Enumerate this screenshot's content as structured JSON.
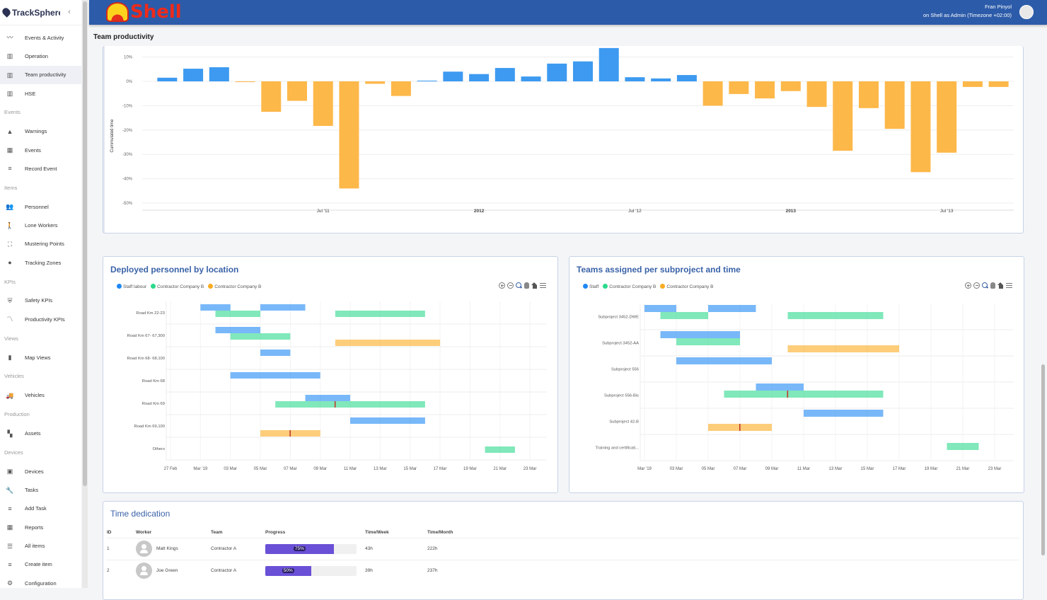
{
  "app": {
    "name": "TrackSphere",
    "brand": "Shell"
  },
  "user": {
    "name": "Fran Pinyol",
    "context": "on Shell as Admin (Timezone +02:00)"
  },
  "sidebar": [
    {
      "type": "item",
      "label": "Events & Activity",
      "icon": "activity-icon",
      "glyph": "〰"
    },
    {
      "type": "item",
      "label": "Operation",
      "icon": "bar-chart-icon",
      "glyph": "▥"
    },
    {
      "type": "item",
      "label": "Team productivity",
      "icon": "bar-chart-icon",
      "glyph": "▥",
      "active": true
    },
    {
      "type": "item",
      "label": "HSE",
      "icon": "bar-chart-icon",
      "glyph": "▥"
    },
    {
      "type": "section",
      "label": "Events"
    },
    {
      "type": "item",
      "label": "Warnings",
      "icon": "warning-icon",
      "glyph": "▲"
    },
    {
      "type": "item",
      "label": "Events",
      "icon": "calendar-icon",
      "glyph": "▦"
    },
    {
      "type": "item",
      "label": "Record Event",
      "icon": "add-list-icon",
      "glyph": "≡"
    },
    {
      "type": "section",
      "label": "Items"
    },
    {
      "type": "item",
      "label": "Personnel",
      "icon": "people-icon",
      "glyph": "👥"
    },
    {
      "type": "item",
      "label": "Lone Workers",
      "icon": "walker-icon",
      "glyph": "🚶"
    },
    {
      "type": "item",
      "label": "Mustering Points",
      "icon": "mustering-icon",
      "glyph": "⛶"
    },
    {
      "type": "item",
      "label": "Tracking Zones",
      "icon": "location-pin-icon",
      "glyph": "●"
    },
    {
      "type": "section",
      "label": "KPIs"
    },
    {
      "type": "item",
      "label": "Safety KPIs",
      "icon": "shield-icon",
      "glyph": "⛨"
    },
    {
      "type": "item",
      "label": "Productivity KPIs",
      "icon": "trend-icon",
      "glyph": "〽"
    },
    {
      "type": "section",
      "label": "Views"
    },
    {
      "type": "item",
      "label": "Map Views",
      "icon": "map-icon",
      "glyph": "▮"
    },
    {
      "type": "section",
      "label": "Vehicles"
    },
    {
      "type": "item",
      "label": "Vehicles",
      "icon": "truck-icon",
      "glyph": "🚚"
    },
    {
      "type": "section",
      "label": "Production"
    },
    {
      "type": "item",
      "label": "Assets",
      "icon": "dashboard-icon",
      "glyph": "▚"
    },
    {
      "type": "section",
      "label": "Devices"
    },
    {
      "type": "item",
      "label": "Devices",
      "icon": "device-icon",
      "glyph": "▣"
    },
    {
      "type": "item",
      "label": "Tasks",
      "icon": "wrench-icon",
      "glyph": "🔧"
    },
    {
      "type": "item",
      "label": "Add Task",
      "icon": "add-list-icon",
      "glyph": "≡"
    },
    {
      "type": "item",
      "label": "Reports",
      "icon": "calendar-icon",
      "glyph": "▦"
    },
    {
      "type": "item",
      "label": "All items",
      "icon": "list-icon",
      "glyph": "☰"
    },
    {
      "type": "item",
      "label": "Create item",
      "icon": "add-list-icon",
      "glyph": "≡"
    },
    {
      "type": "item",
      "label": "Configuration",
      "icon": "gear-icon",
      "glyph": "⚙"
    }
  ],
  "page_title": "Team productivity",
  "colors": {
    "positive": "#3d9af0",
    "negative": "#fdb84a",
    "staff": "#1e88f5",
    "contractor_green": "#2bd98c",
    "contractor_orange": "#fbab22",
    "header": "#2c5ba9",
    "title": "#3a63a8"
  },
  "chart_data": [
    {
      "type": "bar",
      "title": "",
      "ylabel": "Cummulated time",
      "ylim": [
        -50,
        10
      ],
      "yticks": [
        "10%",
        "0%",
        "-10%",
        "-20%",
        "-30%",
        "-40%",
        "-50%"
      ],
      "categories": [
        "2011-01",
        "2011-02",
        "2011-03",
        "2011-04",
        "2011-05",
        "2011-06",
        "2011-07",
        "2011-08",
        "2011-09",
        "2011-10",
        "2011-11",
        "2011-12",
        "2012-01",
        "2012-02",
        "2012-03",
        "2012-04",
        "2012-05",
        "2012-06",
        "2012-07",
        "2012-08",
        "2012-09",
        "2012-10",
        "2012-11",
        "2012-12",
        "2013-01",
        "2013-02",
        "2013-03",
        "2013-04",
        "2013-05",
        "2013-06",
        "2013-07",
        "2013-08",
        "2013-09"
      ],
      "values": [
        1.5,
        5.2,
        5.8,
        -0.3,
        -12.5,
        -8,
        -18.3,
        -44,
        -1,
        -6,
        0.3,
        4,
        3,
        5.5,
        2,
        7.3,
        8.2,
        13.7,
        1.7,
        1.2,
        2.6,
        -10,
        -5.2,
        -7,
        -4,
        -10.5,
        -28.5,
        -11,
        -19.5,
        -37.3,
        -29.3,
        -2.3,
        -2.3
      ],
      "xticks": [
        {
          "label": "Jul '11",
          "at": "2011-07"
        },
        {
          "label": "2012",
          "at": "2012-01"
        },
        {
          "label": "Jul '12",
          "at": "2012-07"
        },
        {
          "label": "2013",
          "at": "2013-01"
        },
        {
          "label": "Jul '13",
          "at": "2013-07"
        }
      ]
    },
    {
      "type": "gantt",
      "title": "Deployed personnel by location",
      "legend": [
        "Staff labour",
        "Contractor Company B",
        "Contractor Company B"
      ],
      "xrange": [
        "2019-02-27",
        "2019-03-24"
      ],
      "xticks": [
        {
          "label": "27 Feb",
          "at": "2019-02-27"
        },
        {
          "label": "Mar '19",
          "at": "2019-03-01"
        },
        {
          "label": "03 Mar",
          "at": "2019-03-03"
        },
        {
          "label": "05 Mar",
          "at": "2019-03-05"
        },
        {
          "label": "07 Mar",
          "at": "2019-03-07"
        },
        {
          "label": "09 Mar",
          "at": "2019-03-09"
        },
        {
          "label": "11 Mar",
          "at": "2019-03-11"
        },
        {
          "label": "13 Mar",
          "at": "2019-03-13"
        },
        {
          "label": "15 Mar",
          "at": "2019-03-15"
        },
        {
          "label": "17 Mar",
          "at": "2019-03-17"
        },
        {
          "label": "19 Mar",
          "at": "2019-03-19"
        },
        {
          "label": "21 Mar",
          "at": "2019-03-21"
        },
        {
          "label": "23 Mar",
          "at": "2019-03-23"
        }
      ],
      "rows": [
        {
          "label": "Road Km 22-23",
          "bars": [
            {
              "s": 0,
              "start": "2019-03-01",
              "end": "2019-03-03"
            },
            {
              "s": 0,
              "start": "2019-03-05",
              "end": "2019-03-08"
            },
            {
              "s": 1,
              "start": "2019-03-02",
              "end": "2019-03-05"
            },
            {
              "s": 1,
              "start": "2019-03-10",
              "end": "2019-03-16"
            }
          ]
        },
        {
          "label": "Road Km 67- 67,300",
          "bars": [
            {
              "s": 0,
              "start": "2019-03-02",
              "end": "2019-03-05"
            },
            {
              "s": 1,
              "start": "2019-03-03",
              "end": "2019-03-07"
            },
            {
              "s": 2,
              "start": "2019-03-10",
              "end": "2019-03-17"
            }
          ]
        },
        {
          "label": "Road Km 68- 68,100",
          "bars": [
            {
              "s": 0,
              "start": "2019-03-05",
              "end": "2019-03-07"
            }
          ]
        },
        {
          "label": "Road Km 68",
          "bars": [
            {
              "s": 0,
              "start": "2019-03-03",
              "end": "2019-03-09"
            }
          ]
        },
        {
          "label": "Road Km 69",
          "bars": [
            {
              "s": 0,
              "start": "2019-03-08",
              "end": "2019-03-11"
            },
            {
              "s": 1,
              "start": "2019-03-06",
              "end": "2019-03-16",
              "marker": "2019-03-10"
            }
          ]
        },
        {
          "label": "Road Km 69,100",
          "bars": [
            {
              "s": 0,
              "start": "2019-03-11",
              "end": "2019-03-16"
            },
            {
              "s": 2,
              "start": "2019-03-05",
              "end": "2019-03-09",
              "marker": "2019-03-07"
            }
          ]
        },
        {
          "label": "Others",
          "bars": [
            {
              "s": 1,
              "start": "2019-03-20",
              "end": "2019-03-22"
            }
          ]
        }
      ]
    },
    {
      "type": "gantt",
      "title": "Teams assigned per subproject and time",
      "legend": [
        "Staff",
        "Contractor Company B",
        "Contractor Company B"
      ],
      "xrange": [
        "2019-03-01",
        "2019-03-24"
      ],
      "xticks": [
        {
          "label": "Mar '19",
          "at": "2019-03-01"
        },
        {
          "label": "03 Mar",
          "at": "2019-03-03"
        },
        {
          "label": "05 Mar",
          "at": "2019-03-05"
        },
        {
          "label": "07 Mar",
          "at": "2019-03-07"
        },
        {
          "label": "09 Mar",
          "at": "2019-03-09"
        },
        {
          "label": "11 Mar",
          "at": "2019-03-11"
        },
        {
          "label": "13 Mar",
          "at": "2019-03-13"
        },
        {
          "label": "15 Mar",
          "at": "2019-03-15"
        },
        {
          "label": "17 Mar",
          "at": "2019-03-17"
        },
        {
          "label": "19 Mar",
          "at": "2019-03-19"
        },
        {
          "label": "21 Mar",
          "at": "2019-03-21"
        },
        {
          "label": "23 Mar",
          "at": "2019-03-23"
        }
      ],
      "rows": [
        {
          "label": "Subproject 3452-DWE",
          "bars": [
            {
              "s": 0,
              "start": "2019-03-01",
              "end": "2019-03-03"
            },
            {
              "s": 0,
              "start": "2019-03-05",
              "end": "2019-03-08"
            },
            {
              "s": 1,
              "start": "2019-03-02",
              "end": "2019-03-05"
            },
            {
              "s": 1,
              "start": "2019-03-10",
              "end": "2019-03-16"
            }
          ]
        },
        {
          "label": "Subproject 3452-AA",
          "bars": [
            {
              "s": 0,
              "start": "2019-03-02",
              "end": "2019-03-05"
            },
            {
              "s": 0,
              "start": "2019-03-05",
              "end": "2019-03-07"
            },
            {
              "s": 1,
              "start": "2019-03-03",
              "end": "2019-03-07"
            },
            {
              "s": 2,
              "start": "2019-03-10",
              "end": "2019-03-17"
            }
          ]
        },
        {
          "label": "Subproject 556",
          "bars": [
            {
              "s": 0,
              "start": "2019-03-03",
              "end": "2019-03-09"
            }
          ]
        },
        {
          "label": "Subproject 556-Bis",
          "bars": [
            {
              "s": 0,
              "start": "2019-03-08",
              "end": "2019-03-11"
            },
            {
              "s": 1,
              "start": "2019-03-06",
              "end": "2019-03-16",
              "marker": "2019-03-10"
            }
          ]
        },
        {
          "label": "Subproject 42-B",
          "bars": [
            {
              "s": 0,
              "start": "2019-03-11",
              "end": "2019-03-16"
            },
            {
              "s": 2,
              "start": "2019-03-05",
              "end": "2019-03-09",
              "marker": "2019-03-07"
            }
          ]
        },
        {
          "label": "Training and certificati...",
          "bars": [
            {
              "s": 1,
              "start": "2019-03-20",
              "end": "2019-03-22"
            }
          ]
        }
      ]
    }
  ],
  "time_dedication": {
    "title": "Time dedication",
    "columns": [
      "ID",
      "Worker",
      "Team",
      "Progress",
      "Time/Week",
      "Time/Month"
    ],
    "rows": [
      {
        "id": "1",
        "worker": "Matt Kings",
        "team": "Contractor A",
        "progress": 75,
        "progress_label": "75%",
        "week": "43h",
        "month": "222h"
      },
      {
        "id": "2",
        "worker": "Joe Green",
        "team": "Contractor A",
        "progress": 50,
        "progress_label": "50%",
        "week": "39h",
        "month": "237h"
      }
    ]
  }
}
